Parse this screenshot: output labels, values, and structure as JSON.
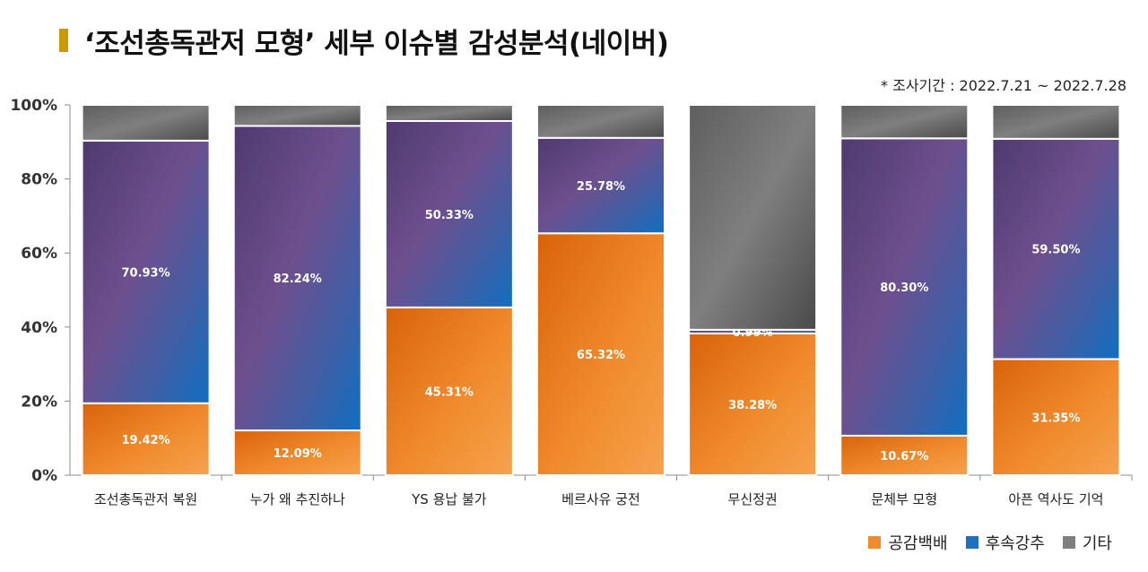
{
  "title": "‘조선총독관저 모형’ 세부 이슈별 감성분석(네이버)",
  "period": "* 조사기간 : 2022.7.21 ~ 2022.7.28",
  "colors": {
    "title_bar": "#C99A06",
    "empathy": "#F08A2C",
    "following": "#1E6FBF",
    "other": "#7F7F7F"
  },
  "chart_data": {
    "type": "bar",
    "stacked": "percent",
    "title": "‘조선총독관저 모형’ 세부 이슈별 감성분석(네이버)",
    "categories": [
      "조선총독관저 복원",
      "누가 왜 추진하나",
      "YS 용납 불가",
      "베르사유 궁전",
      "무신정권",
      "문체부 모형",
      "아픈 역사도 기억"
    ],
    "series": [
      {
        "name": "공감백배",
        "values": [
          19.42,
          12.09,
          45.31,
          65.32,
          38.28,
          10.67,
          31.35
        ],
        "labels": [
          "19.42%",
          "12.09%",
          "45.31%",
          "65.32%",
          "38.28%",
          "10.67%",
          "31.35%"
        ]
      },
      {
        "name": "후속강추",
        "values": [
          70.93,
          82.24,
          50.33,
          25.78,
          0.99,
          80.3,
          59.5
        ],
        "labels": [
          "70.93%",
          "82.24%",
          "50.33%",
          "25.78%",
          "0.99%",
          "80.30%",
          "59.50%"
        ]
      },
      {
        "name": "기타",
        "values": [
          9.65,
          5.67,
          4.36,
          8.9,
          60.73,
          9.03,
          9.15
        ]
      }
    ],
    "y_ticks": [
      "0%",
      "20%",
      "40%",
      "60%",
      "80%",
      "100%"
    ],
    "ylim": [
      0,
      100
    ],
    "grid": false,
    "legend_position": "bottom-right"
  }
}
